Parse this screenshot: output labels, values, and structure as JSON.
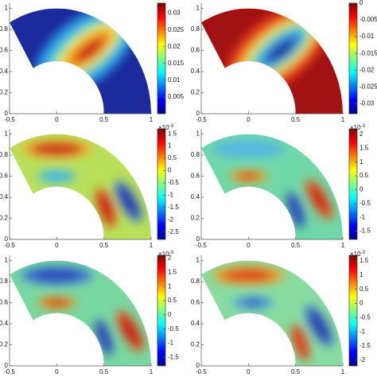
{
  "chart_data": [
    {
      "type": "heatmap",
      "xlim": [
        -0.5,
        1
      ],
      "ylim": [
        0,
        1.05
      ],
      "xticks": [
        -0.5,
        0,
        0.5,
        1
      ],
      "yticks": [
        0,
        0.2,
        0.4,
        0.6,
        0.8,
        1
      ],
      "colorbar": {
        "clim": [
          0,
          0.033
        ],
        "ticks": [
          0.005,
          0.01,
          0.015,
          0.02,
          0.025,
          0.03
        ]
      }
    },
    {
      "type": "heatmap",
      "xlim": [
        -0.5,
        1
      ],
      "ylim": [
        0,
        1.05
      ],
      "xticks": [
        -0.5,
        0,
        0.5,
        1
      ],
      "yticks": [
        0,
        0.2,
        0.4,
        0.6,
        0.8,
        1
      ],
      "colorbar": {
        "clim": [
          -0.033,
          0
        ],
        "ticks": [
          -0.03,
          -0.025,
          -0.02,
          -0.015,
          -0.01,
          -0.005,
          0
        ]
      }
    },
    {
      "type": "heatmap",
      "xlim": [
        -0.5,
        1
      ],
      "ylim": [
        0,
        1.05
      ],
      "xticks": [
        -0.5,
        0,
        0.5,
        1
      ],
      "yticks": [
        0,
        0.2,
        0.4,
        0.6,
        0.8,
        1
      ],
      "colorbar": {
        "clim": [
          -2.8,
          1.7
        ],
        "ticks": [
          -2.5,
          -2,
          -1.5,
          -1,
          -0.5,
          0,
          0.5,
          1,
          1.5
        ],
        "multiplier": {
          "base": "×10",
          "exponent": "-3"
        }
      }
    },
    {
      "type": "heatmap",
      "xlim": [
        -0.5,
        1
      ],
      "ylim": [
        0,
        1.05
      ],
      "xticks": [
        -0.5,
        0,
        0.5,
        1
      ],
      "yticks": [
        0,
        0.2,
        0.4,
        0.6,
        0.8,
        1
      ],
      "colorbar": {
        "clim": [
          -1.8,
          2.2
        ],
        "ticks": [
          -1.5,
          -1,
          -0.5,
          0,
          0.5,
          1,
          1.5,
          2
        ],
        "multiplier": {
          "base": "×10",
          "exponent": "-3"
        }
      }
    },
    {
      "type": "heatmap",
      "xlim": [
        -0.5,
        1
      ],
      "ylim": [
        0,
        1.05
      ],
      "xticks": [
        -0.5,
        0,
        0.5,
        1
      ],
      "yticks": [
        0,
        0.2,
        0.4,
        0.6,
        0.8,
        1
      ],
      "colorbar": {
        "clim": [
          -1.8,
          2.1
        ],
        "ticks": [
          -1.5,
          -1,
          -0.5,
          0,
          0.5,
          1,
          1.5,
          2
        ],
        "multiplier": {
          "base": "×10",
          "exponent": "-3"
        }
      }
    },
    {
      "type": "heatmap",
      "xlim": [
        -0.5,
        1
      ],
      "ylim": [
        0,
        1.05
      ],
      "xticks": [
        -0.5,
        0,
        0.5,
        1
      ],
      "yticks": [
        0,
        0.2,
        0.4,
        0.6,
        0.8,
        1
      ],
      "colorbar": {
        "clim": [
          -2.2,
          1.7
        ],
        "ticks": [
          -2,
          -1.5,
          -1,
          -0.5,
          0,
          0.5,
          1,
          1.5
        ],
        "multiplier": {
          "base": "×10",
          "exponent": "-3"
        }
      }
    }
  ]
}
